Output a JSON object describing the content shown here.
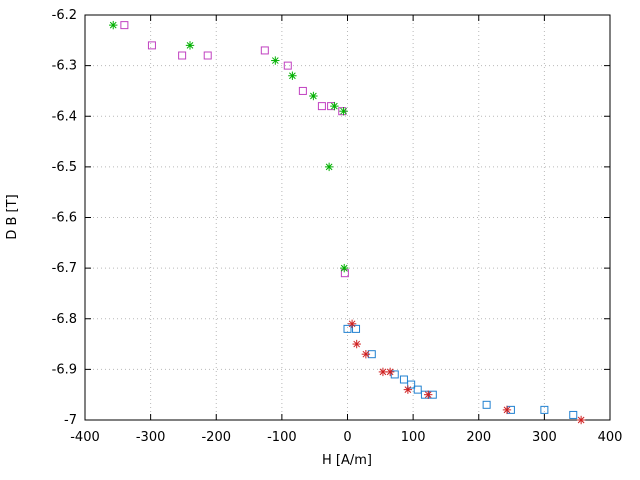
{
  "chart_data": {
    "type": "scatter",
    "xlabel": "H [A/m]",
    "ylabel": "D B [T]",
    "xlim": [
      -400,
      400
    ],
    "ylim": [
      -7,
      -6.2
    ],
    "grid": true,
    "legend": "none",
    "background_color": "#ffffff",
    "axis_color": "#000000",
    "grid_color": "#b9b9b9",
    "xticks": [
      {
        "v": -400,
        "label": "-400"
      },
      {
        "v": -300,
        "label": "-300"
      },
      {
        "v": -200,
        "label": "-200"
      },
      {
        "v": -100,
        "label": "-100"
      },
      {
        "v": 0,
        "label": "0"
      },
      {
        "v": 100,
        "label": "100"
      },
      {
        "v": 200,
        "label": "200"
      },
      {
        "v": 300,
        "label": "300"
      },
      {
        "v": 400,
        "label": "400"
      }
    ],
    "yticks": [
      {
        "v": -7,
        "label": "-7"
      },
      {
        "v": -6.9,
        "label": "-6.9"
      },
      {
        "v": -6.8,
        "label": "-6.8"
      },
      {
        "v": -6.7,
        "label": "-6.7"
      },
      {
        "v": -6.6,
        "label": "-6.6"
      },
      {
        "v": -6.5,
        "label": "-6.5"
      },
      {
        "v": -6.4,
        "label": "-6.4"
      },
      {
        "v": -6.3,
        "label": "-6.3"
      },
      {
        "v": -6.2,
        "label": "-6.2"
      }
    ],
    "series": [
      {
        "name": "magenta-squares",
        "marker": "open-square",
        "color": "#c040c0",
        "points": [
          [
            -340,
            -6.22
          ],
          [
            -298,
            -6.26
          ],
          [
            -252,
            -6.28
          ],
          [
            -213,
            -6.28
          ],
          [
            -126,
            -6.27
          ],
          [
            -91,
            -6.3
          ],
          [
            -68,
            -6.35
          ],
          [
            -39,
            -6.38
          ],
          [
            -25,
            -6.38
          ],
          [
            -8,
            -6.39
          ],
          [
            -4,
            -6.71
          ]
        ]
      },
      {
        "name": "green-asterisks",
        "marker": "asterisk",
        "color": "#00b000",
        "points": [
          [
            -357,
            -6.22
          ],
          [
            -240,
            -6.26
          ],
          [
            -110,
            -6.29
          ],
          [
            -84,
            -6.32
          ],
          [
            -52,
            -6.36
          ],
          [
            -20,
            -6.38
          ],
          [
            -6,
            -6.39
          ],
          [
            -28,
            -6.5
          ],
          [
            -5,
            -6.7
          ]
        ]
      },
      {
        "name": "blue-squares",
        "marker": "open-square",
        "color": "#2080d0",
        "points": [
          [
            0,
            -6.82
          ],
          [
            13,
            -6.82
          ],
          [
            37,
            -6.87
          ],
          [
            72,
            -6.91
          ],
          [
            86,
            -6.92
          ],
          [
            97,
            -6.93
          ],
          [
            107,
            -6.94
          ],
          [
            118,
            -6.95
          ],
          [
            130,
            -6.95
          ],
          [
            212,
            -6.97
          ],
          [
            249,
            -6.98
          ],
          [
            300,
            -6.98
          ],
          [
            344,
            -6.99
          ]
        ]
      },
      {
        "name": "red-asterisks",
        "marker": "asterisk",
        "color": "#d02020",
        "points": [
          [
            7,
            -6.81
          ],
          [
            14,
            -6.85
          ],
          [
            28,
            -6.87
          ],
          [
            54,
            -6.905
          ],
          [
            65,
            -6.905
          ],
          [
            92,
            -6.94
          ],
          [
            123,
            -6.95
          ],
          [
            243,
            -6.98
          ],
          [
            356,
            -7.0
          ]
        ]
      }
    ]
  }
}
